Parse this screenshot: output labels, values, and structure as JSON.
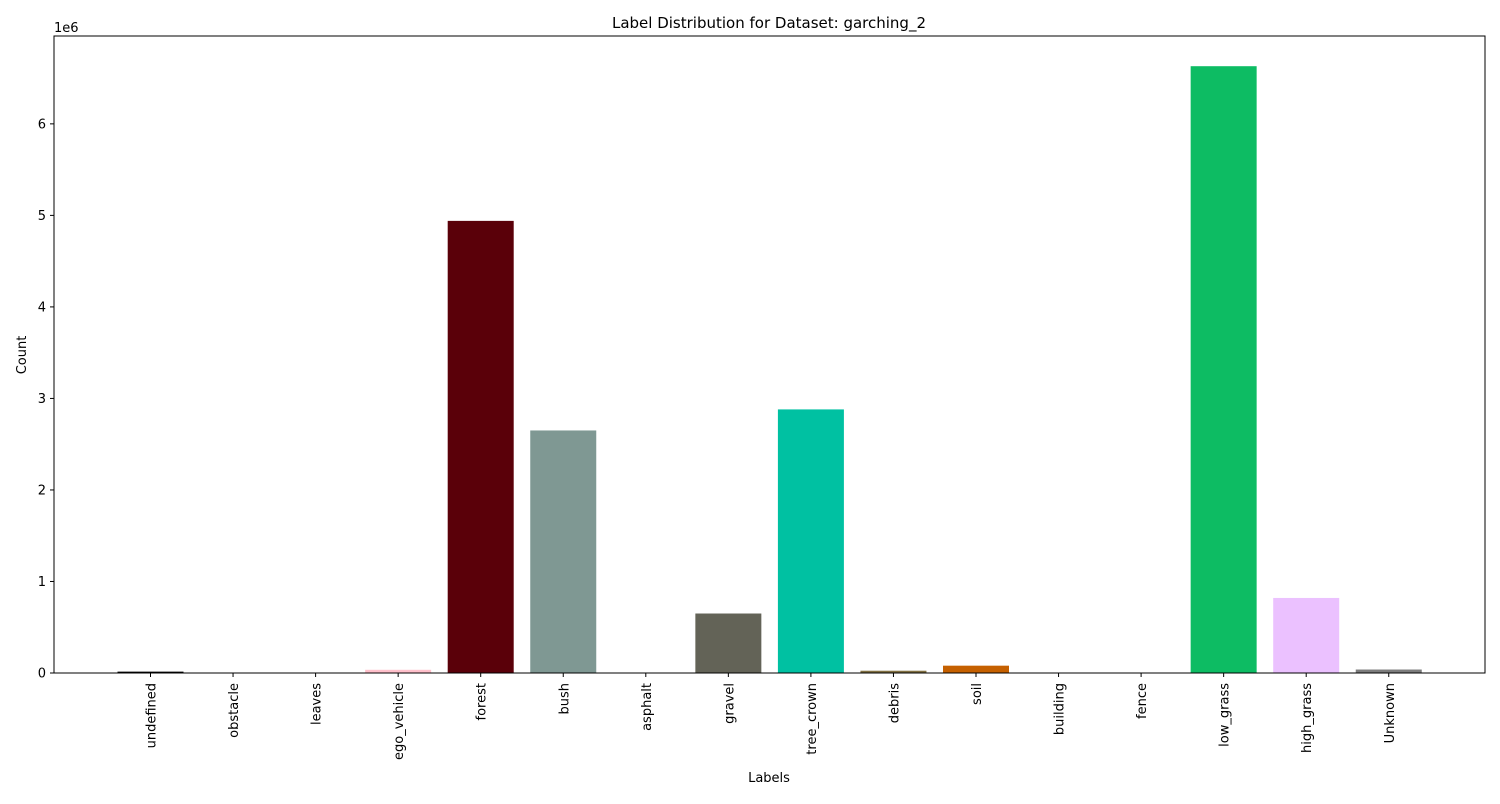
{
  "chart_data": {
    "type": "bar",
    "title": "Label Distribution for Dataset: garching_2",
    "xlabel": "Labels",
    "ylabel": "Count",
    "y_scale_label": "1e6",
    "ylim": [
      0,
      6960000
    ],
    "yticks": [
      0,
      1000000,
      2000000,
      3000000,
      4000000,
      5000000,
      6000000
    ],
    "ytick_labels": [
      "0",
      "1",
      "2",
      "3",
      "4",
      "5",
      "6"
    ],
    "categories": [
      "undefined",
      "obstacle",
      "leaves",
      "ego_vehicle",
      "forest",
      "bush",
      "asphalt",
      "gravel",
      "tree_crown",
      "debris",
      "soil",
      "building",
      "fence",
      "low_grass",
      "high_grass",
      "Unknown"
    ],
    "values": [
      15000,
      2000,
      1000,
      35000,
      4940000,
      2650000,
      2000,
      650000,
      2880000,
      25000,
      80000,
      1000,
      1000,
      6630000,
      820000,
      38000
    ],
    "colors": [
      "#000000",
      "#c8c8c8",
      "#2e8b57",
      "#ffc0cb",
      "#5a0009",
      "#7f9893",
      "#bebebe",
      "#636357",
      "#00c1a2",
      "#817042",
      "#c56000",
      "#d0d0d0",
      "#d3d3d3",
      "#0dbc63",
      "#ebc1ff",
      "#7c7c7c"
    ],
    "grid": false,
    "legend": "none"
  }
}
